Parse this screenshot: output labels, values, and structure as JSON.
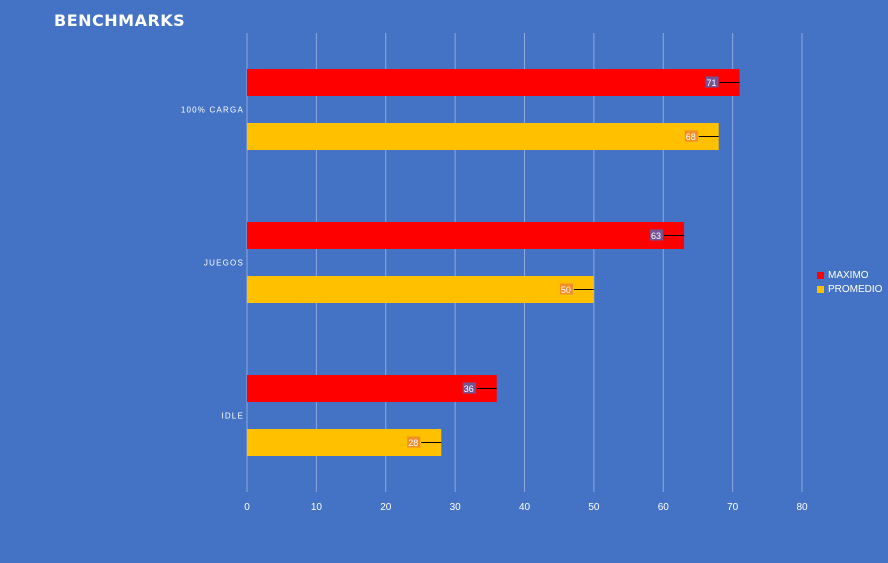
{
  "chart_data": {
    "type": "bar",
    "orientation": "horizontal",
    "title": "BENCHMARKS",
    "categories": [
      "100% CARGA",
      "JUEGOS",
      "IDLE"
    ],
    "series": [
      {
        "name": "MAXIMO",
        "values": [
          71,
          63,
          36
        ],
        "color": "#ff0000"
      },
      {
        "name": "PROMEDIO",
        "values": [
          68,
          50,
          28
        ],
        "color": "#ffc000"
      }
    ],
    "xlim": [
      0,
      80
    ],
    "xticks": [
      0,
      10,
      20,
      30,
      40,
      50,
      60,
      70,
      80
    ],
    "grid": true,
    "legend_position": "right",
    "data_labels": true
  }
}
